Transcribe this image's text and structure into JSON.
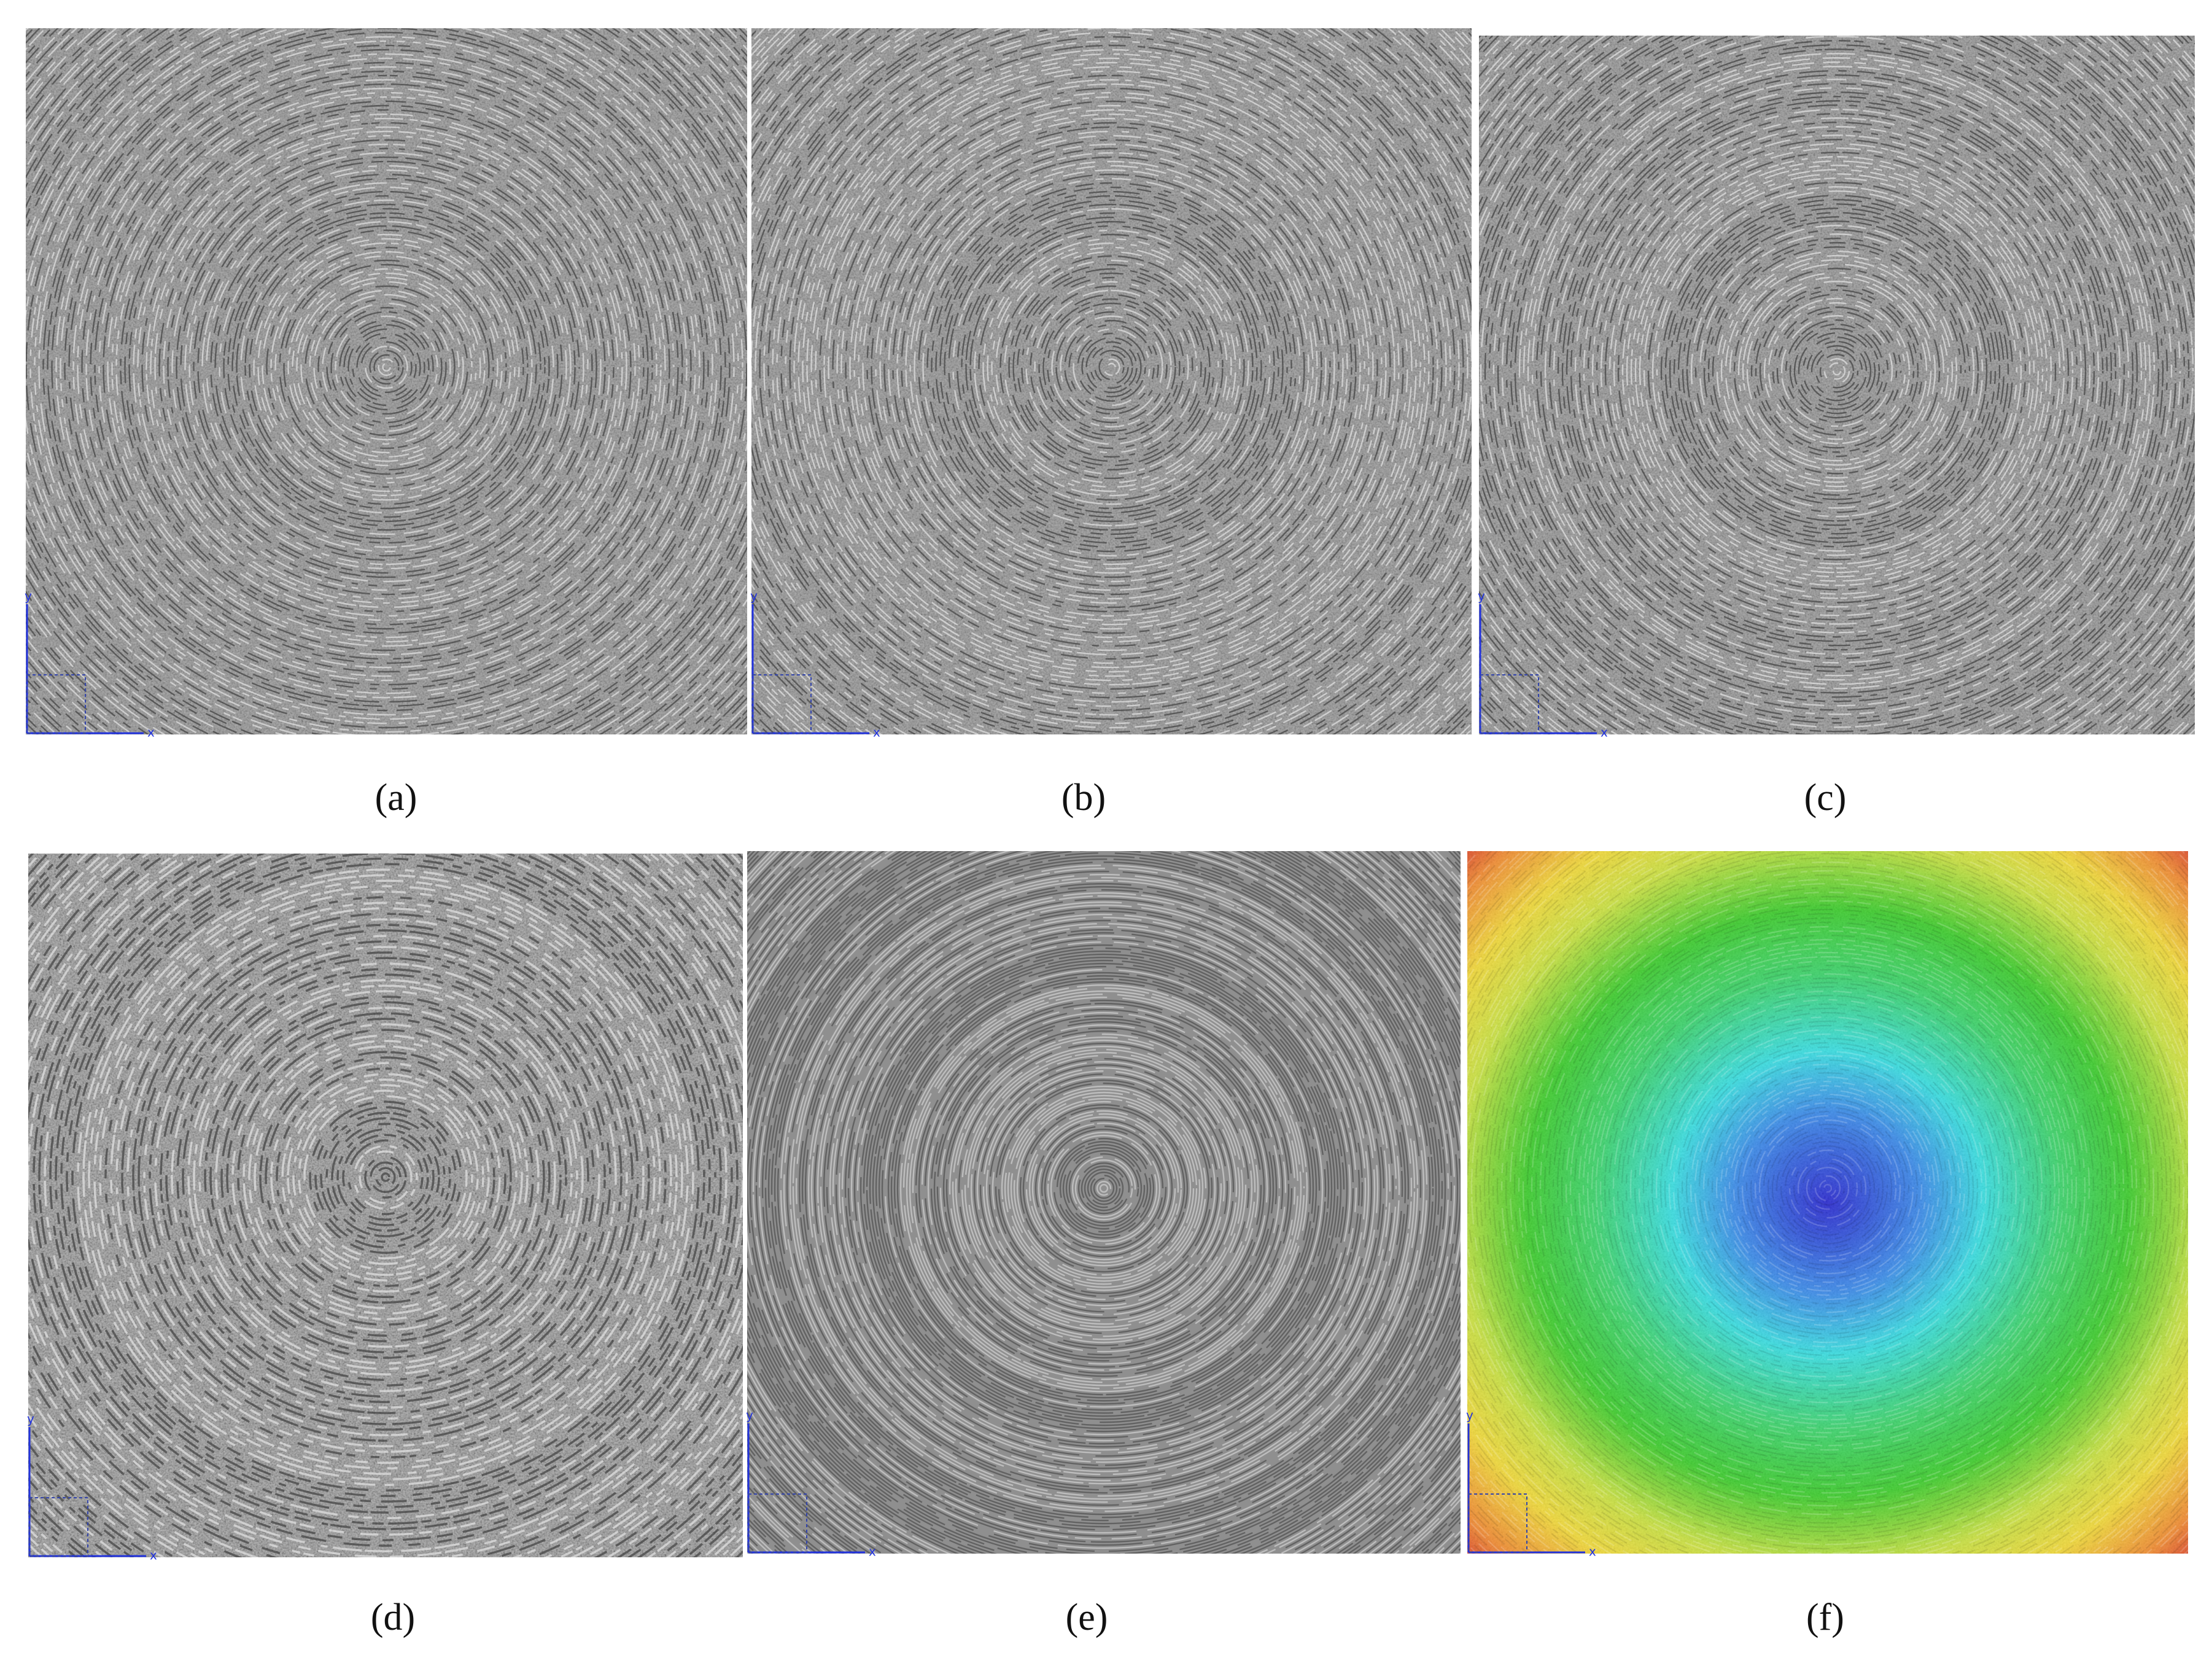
{
  "panels": [
    {
      "label": "(a)"
    },
    {
      "label": "(b)"
    },
    {
      "label": "(c)"
    },
    {
      "label": "(d)"
    },
    {
      "label": "(e)"
    },
    {
      "label": "(f)"
    }
  ],
  "axis_labels": {
    "x": "x",
    "y": "y"
  }
}
